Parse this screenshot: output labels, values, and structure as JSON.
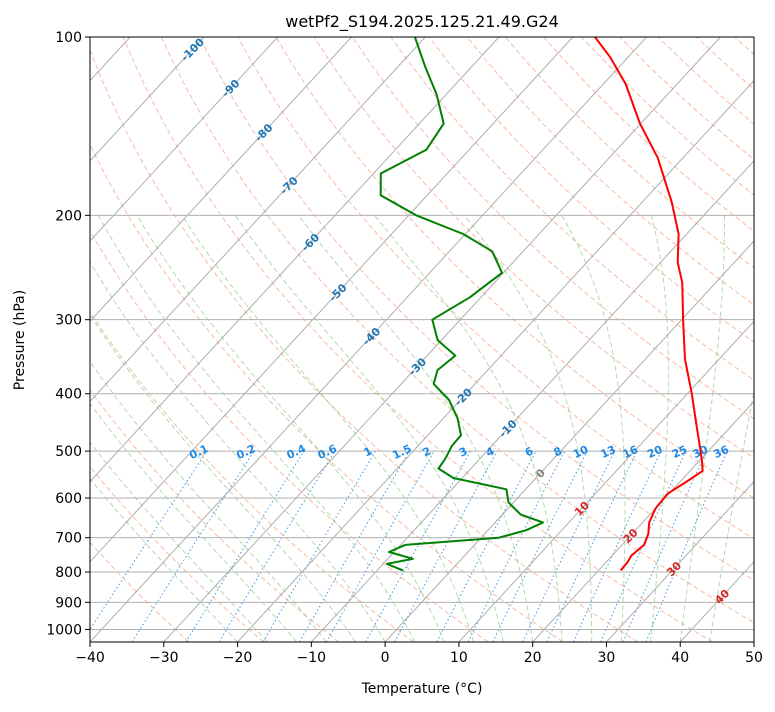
{
  "chart_data": {
    "type": "line",
    "subtype": "skew-T log-P diagram",
    "title": "wetPf2_S194.2025.125.21.49.G24",
    "xlabel": "Temperature (°C)",
    "ylabel": "Pressure (hPa)",
    "xlim": [
      -40,
      50
    ],
    "ylim_hPa": [
      1050,
      100
    ],
    "y_scale": "log",
    "grid": true,
    "x_ticks": [
      -40,
      -30,
      -20,
      -10,
      0,
      10,
      20,
      30,
      40,
      50
    ],
    "x_tick_labels": [
      "−40",
      "−30",
      "−20",
      "−10",
      "0",
      "10",
      "20",
      "30",
      "40",
      "50"
    ],
    "y_ticks": [
      1000,
      900,
      800,
      700,
      600,
      500,
      400,
      300,
      200,
      100
    ],
    "y_tick_labels": [
      "1000",
      "900",
      "800",
      "700",
      "600",
      "500",
      "400",
      "300",
      "200",
      "100"
    ],
    "series": [
      {
        "role": "temperature",
        "color": "#ff0000",
        "points": [
          {
            "p": 795,
            "t": 23.0
          },
          {
            "p": 770,
            "t": 22.9
          },
          {
            "p": 750,
            "t": 22.6
          },
          {
            "p": 720,
            "t": 23.0
          },
          {
            "p": 690,
            "t": 22.2
          },
          {
            "p": 660,
            "t": 20.9
          },
          {
            "p": 625,
            "t": 20.0
          },
          {
            "p": 590,
            "t": 19.8
          },
          {
            "p": 565,
            "t": 20.8
          },
          {
            "p": 540,
            "t": 21.7
          },
          {
            "p": 520,
            "t": 20.4
          },
          {
            "p": 490,
            "t": 18.2
          },
          {
            "p": 450,
            "t": 15.0
          },
          {
            "p": 400,
            "t": 10.6
          },
          {
            "p": 350,
            "t": 5.4
          },
          {
            "p": 300,
            "t": 0.2
          },
          {
            "p": 260,
            "t": -4.5
          },
          {
            "p": 240,
            "t": -7.7
          },
          {
            "p": 215,
            "t": -11.1
          },
          {
            "p": 190,
            "t": -16.0
          },
          {
            "p": 160,
            "t": -23.4
          },
          {
            "p": 140,
            "t": -30.1
          },
          {
            "p": 120,
            "t": -37.0
          },
          {
            "p": 108,
            "t": -42.5
          },
          {
            "p": 100,
            "t": -47.0
          }
        ]
      },
      {
        "role": "dewpoint",
        "color": "#008000",
        "points": [
          {
            "p": 795,
            "t": -6.5
          },
          {
            "p": 775,
            "t": -9.5
          },
          {
            "p": 760,
            "t": -6.6
          },
          {
            "p": 740,
            "t": -10.7
          },
          {
            "p": 720,
            "t": -9.4
          },
          {
            "p": 700,
            "t": 2.4
          },
          {
            "p": 680,
            "t": 5.2
          },
          {
            "p": 660,
            "t": 6.5
          },
          {
            "p": 640,
            "t": 2.5
          },
          {
            "p": 610,
            "t": -0.7
          },
          {
            "p": 580,
            "t": -2.6
          },
          {
            "p": 555,
            "t": -11.2
          },
          {
            "p": 535,
            "t": -14.4
          },
          {
            "p": 515,
            "t": -14.7
          },
          {
            "p": 490,
            "t": -15.4
          },
          {
            "p": 470,
            "t": -15.5
          },
          {
            "p": 440,
            "t": -18.1
          },
          {
            "p": 410,
            "t": -21.5
          },
          {
            "p": 385,
            "t": -25.6
          },
          {
            "p": 365,
            "t": -26.8
          },
          {
            "p": 345,
            "t": -26.2
          },
          {
            "p": 325,
            "t": -30.5
          },
          {
            "p": 300,
            "t": -33.8
          },
          {
            "p": 275,
            "t": -31.5
          },
          {
            "p": 250,
            "t": -30.2
          },
          {
            "p": 230,
            "t": -34.2
          },
          {
            "p": 215,
            "t": -40.3
          },
          {
            "p": 200,
            "t": -49.0
          },
          {
            "p": 185,
            "t": -56.3
          },
          {
            "p": 170,
            "t": -59.0
          },
          {
            "p": 155,
            "t": -55.8
          },
          {
            "p": 140,
            "t": -56.7
          },
          {
            "p": 125,
            "t": -61.3
          },
          {
            "p": 112,
            "t": -66.4
          },
          {
            "p": 100,
            "t": -71.4
          }
        ]
      }
    ],
    "reference_lines": {
      "dry_adiabat_color": "#f4a582",
      "moist_adiabat_color": "#7fbf7f",
      "mixing_ratio_color": "#1e88e5",
      "isotherm_color": "#000000"
    },
    "isotherm_labels": [
      {
        "text": "-100",
        "t": -100,
        "color": "#1f77b4"
      },
      {
        "text": "-90",
        "t": -90,
        "color": "#1f77b4"
      },
      {
        "text": "-80",
        "t": -80,
        "color": "#1f77b4"
      },
      {
        "text": "-70",
        "t": -70,
        "color": "#1f77b4"
      },
      {
        "text": "-60",
        "t": -60,
        "color": "#1f77b4"
      },
      {
        "text": "-50",
        "t": -50,
        "color": "#1f77b4"
      },
      {
        "text": "-40",
        "t": -40,
        "color": "#1f77b4"
      },
      {
        "text": "-30",
        "t": -30,
        "color": "#1f77b4"
      },
      {
        "text": "-20",
        "t": -20,
        "color": "#1f77b4"
      },
      {
        "text": "-10",
        "t": -10,
        "color": "#1f77b4"
      },
      {
        "text": "0",
        "t": 0,
        "color": "#808080"
      },
      {
        "text": "10",
        "t": 10,
        "color": "#d62728"
      },
      {
        "text": "20",
        "t": 20,
        "color": "#d62728"
      },
      {
        "text": "30",
        "t": 30,
        "color": "#d62728"
      },
      {
        "text": "40",
        "t": 40,
        "color": "#d62728"
      }
    ],
    "mixing_ratio_labels": [
      "0.1",
      "0.2",
      "0.4",
      "0.6",
      "1",
      "1.5",
      "2",
      "3",
      "4",
      "6",
      "8",
      "10",
      "13",
      "16",
      "20",
      "25",
      "30",
      "36"
    ]
  }
}
